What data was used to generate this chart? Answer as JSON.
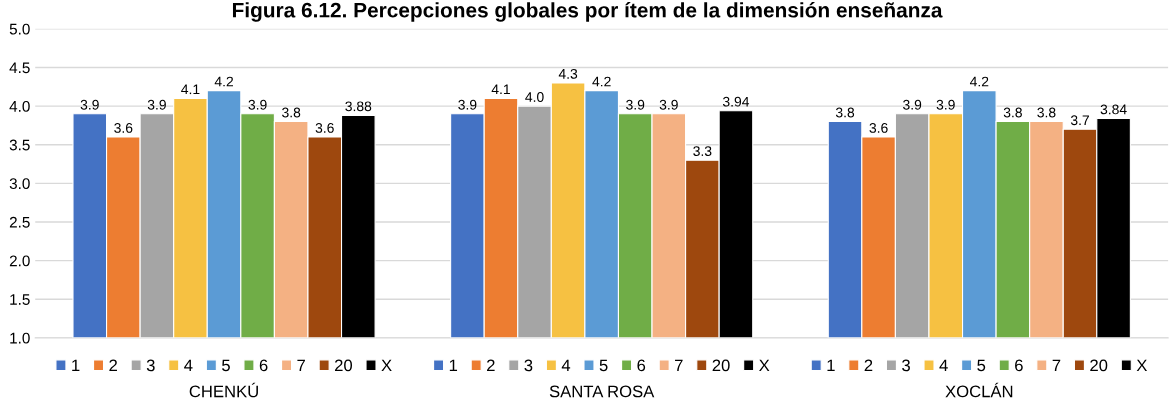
{
  "chart_data": {
    "type": "bar",
    "title": "Figura 6.12. Percepciones globales por ítem de la dimensión enseñanza",
    "categories": [
      "CHENKÚ",
      "SANTA ROSA",
      "XOCLÁN"
    ],
    "ylim": [
      1.0,
      5.0
    ],
    "yticks": [
      {
        "value": 1.0,
        "label": "1.0"
      },
      {
        "value": 1.5,
        "label": "1.5"
      },
      {
        "value": 2.0,
        "label": "2.0"
      },
      {
        "value": 2.5,
        "label": "2.5"
      },
      {
        "value": 3.0,
        "label": "3.0"
      },
      {
        "value": 3.5,
        "label": "3.5"
      },
      {
        "value": 4.0,
        "label": "4.0"
      },
      {
        "value": 4.5,
        "label": "4.5"
      },
      {
        "value": 5.0,
        "label": "5.0"
      }
    ],
    "grid": "y",
    "legend": "bottom",
    "series": [
      {
        "name": "1",
        "color": "#4472c4",
        "values": [
          3.9,
          3.9,
          3.8
        ],
        "value_labels": [
          "3.9",
          "3.9",
          "3.8"
        ]
      },
      {
        "name": "2",
        "color": "#ed7d31",
        "values": [
          3.6,
          4.1,
          3.6
        ],
        "value_labels": [
          "3.6",
          "4.1",
          "3.6"
        ]
      },
      {
        "name": "3",
        "color": "#a5a5a5",
        "values": [
          3.9,
          4.0,
          3.9
        ],
        "value_labels": [
          "3.9",
          "4.0",
          "3.9"
        ]
      },
      {
        "name": "4",
        "color": "#f6c142",
        "values": [
          4.1,
          4.3,
          3.9
        ],
        "value_labels": [
          "4.1",
          "4.3",
          "3.9"
        ]
      },
      {
        "name": "5",
        "color": "#5b9bd5",
        "values": [
          4.2,
          4.2,
          4.2
        ],
        "value_labels": [
          "4.2",
          "4.2",
          "4.2"
        ]
      },
      {
        "name": "6",
        "color": "#70ad47",
        "values": [
          3.9,
          3.9,
          3.8
        ],
        "value_labels": [
          "3.9",
          "3.9",
          "3.8"
        ]
      },
      {
        "name": "7",
        "color": "#f4b183",
        "values": [
          3.8,
          3.9,
          3.8
        ],
        "value_labels": [
          "3.8",
          "3.9",
          "3.8"
        ]
      },
      {
        "name": "20",
        "color": "#9e480e",
        "values": [
          3.6,
          3.3,
          3.7
        ],
        "value_labels": [
          "3.6",
          "3.3",
          "3.7"
        ]
      },
      {
        "name": "X",
        "color": "#000000",
        "values": [
          3.88,
          3.94,
          3.84
        ],
        "value_labels": [
          "3.88",
          "3.94",
          "3.84"
        ]
      }
    ]
  }
}
